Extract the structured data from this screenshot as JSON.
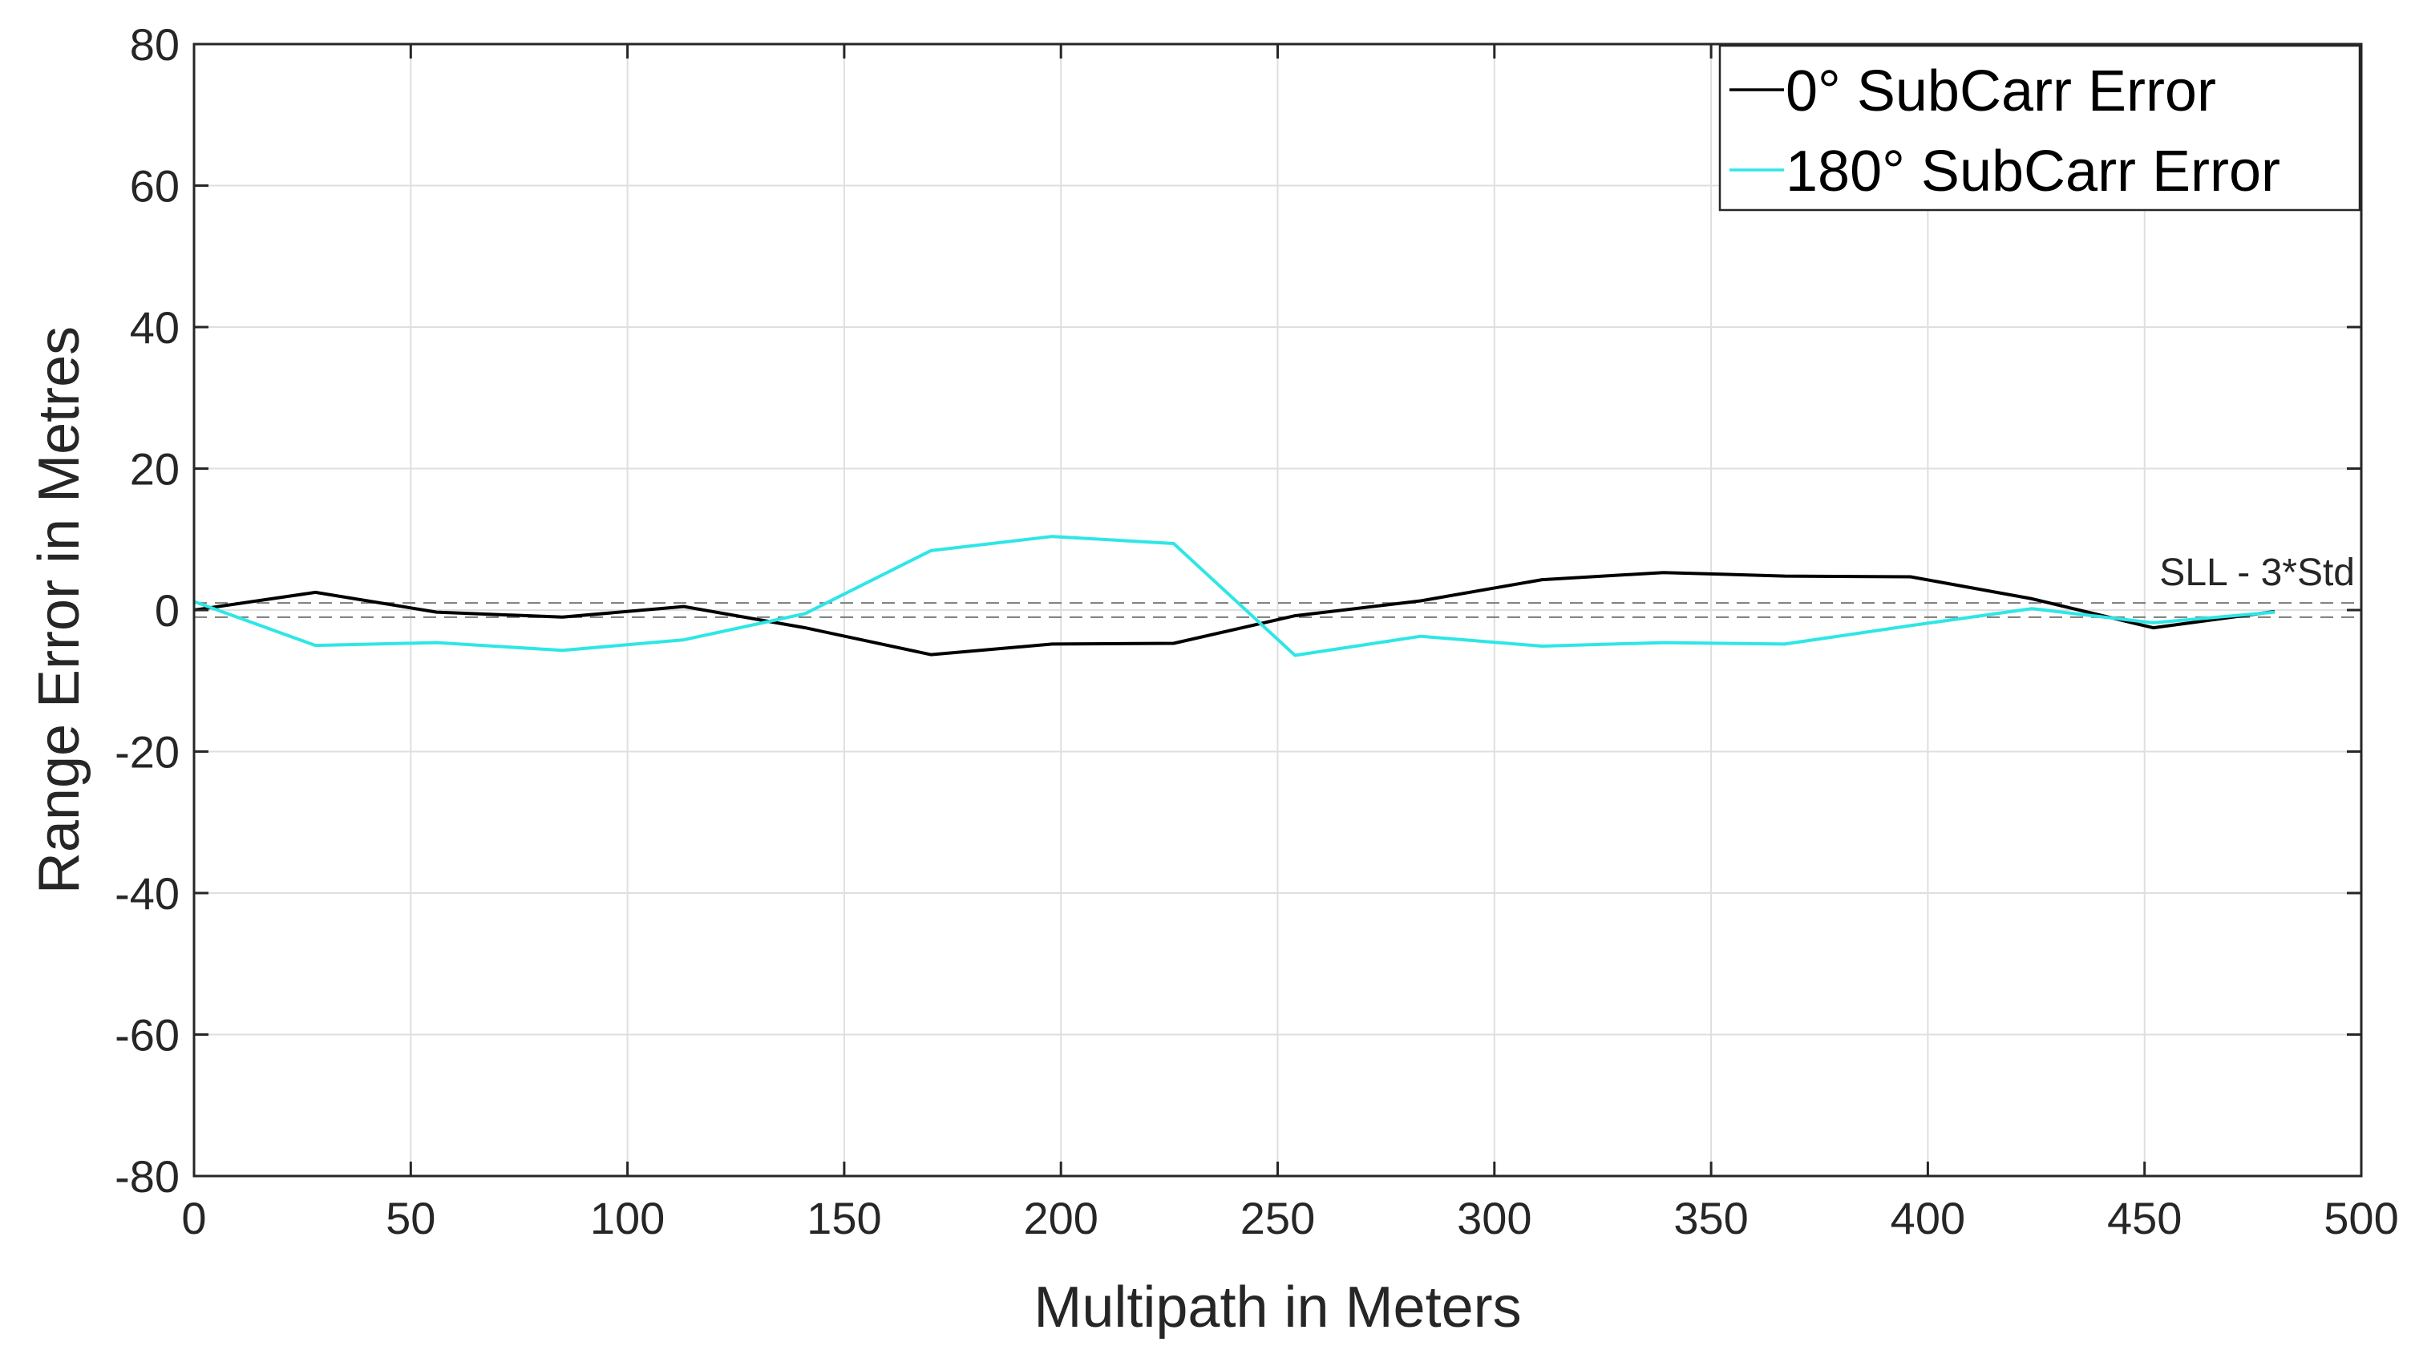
{
  "chart_data": {
    "type": "line",
    "title": "",
    "xlabel": "Multipath in Meters",
    "ylabel": "Range Error in Metres",
    "xlim": [
      0,
      500
    ],
    "ylim": [
      -80,
      80
    ],
    "xticks": [
      0,
      50,
      100,
      150,
      200,
      250,
      300,
      350,
      400,
      450,
      500
    ],
    "yticks": [
      -80,
      -60,
      -40,
      -20,
      0,
      20,
      40,
      60,
      80
    ],
    "xtick_labels": [
      "0",
      "50",
      "100",
      "150",
      "200",
      "250",
      "300",
      "350",
      "400",
      "450",
      "500"
    ],
    "ytick_labels": [
      "-80",
      "-60",
      "-40",
      "-20",
      "0",
      "20",
      "40",
      "60",
      "80"
    ],
    "grid": true,
    "legend_position": "top-right",
    "series": [
      {
        "name": "0° SubCarr Error",
        "color": "#000000",
        "x": [
          0,
          28,
          56,
          85,
          113,
          141,
          170,
          198,
          226,
          254,
          283,
          311,
          339,
          367,
          396,
          424,
          452,
          480
        ],
        "y": [
          0,
          2.5,
          -0.3,
          -1,
          0.5,
          -2.5,
          -6.3,
          -4.8,
          -4.7,
          -0.8,
          1.3,
          4.3,
          5.3,
          4.8,
          4.7,
          1.6,
          -2.5,
          -0.2
        ]
      },
      {
        "name": "180° SubCarr Error",
        "color": "#2ee6e6",
        "x": [
          0,
          28,
          56,
          85,
          113,
          141,
          170,
          198,
          226,
          254,
          283,
          311,
          339,
          367,
          396,
          424,
          452,
          480
        ],
        "y": [
          1.2,
          -5,
          -4.6,
          -5.7,
          -4.2,
          -0.5,
          8.4,
          10.4,
          9.4,
          -6.4,
          -3.7,
          -5.1,
          -4.6,
          -4.8,
          -2.2,
          0.2,
          -1.8,
          -0.3
        ]
      }
    ],
    "reference_lines": [
      {
        "y": 1,
        "style": "dashed",
        "color": "#7a7a7a"
      },
      {
        "y": -1,
        "style": "dashed",
        "color": "#7a7a7a"
      }
    ],
    "annotations": [
      {
        "text": "SLL - 3*Std",
        "x": 500,
        "y": 1
      }
    ]
  }
}
